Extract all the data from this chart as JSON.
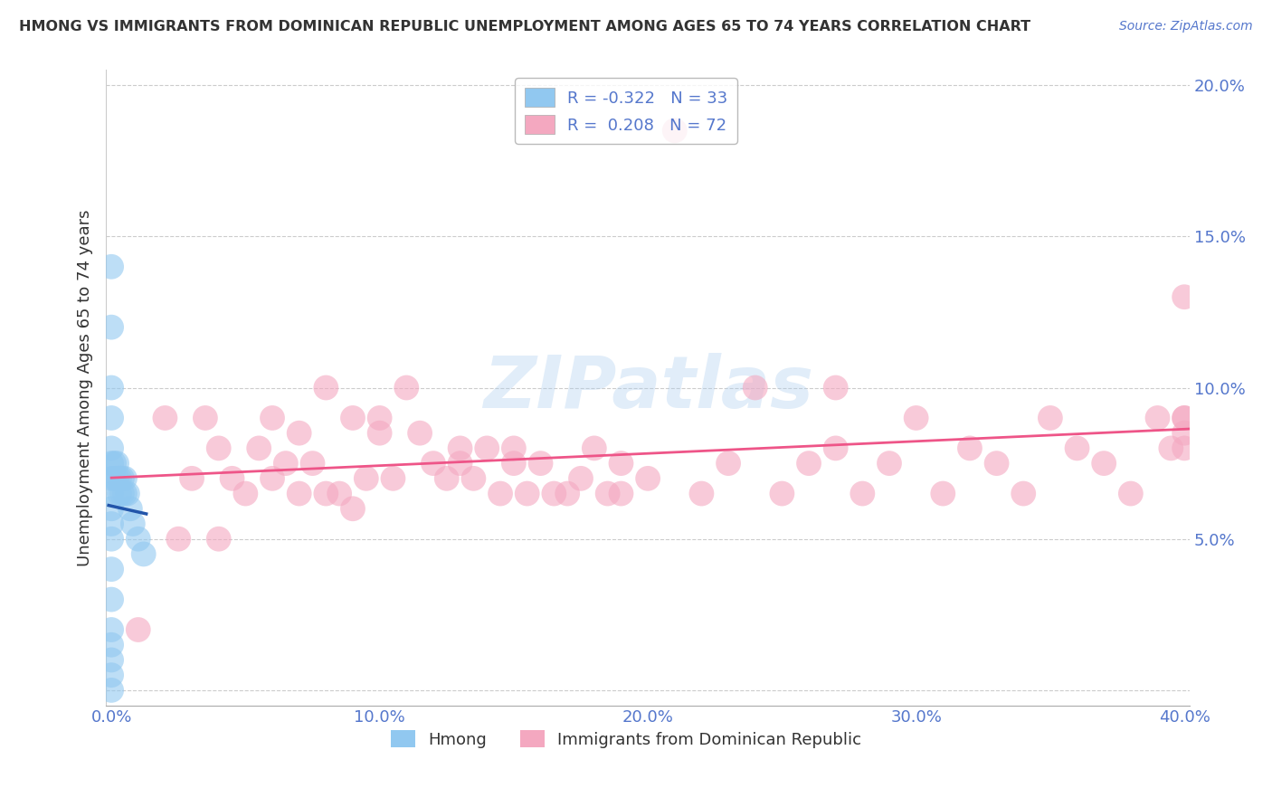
{
  "title": "HMONG VS IMMIGRANTS FROM DOMINICAN REPUBLIC UNEMPLOYMENT AMONG AGES 65 TO 74 YEARS CORRELATION CHART",
  "source": "Source: ZipAtlas.com",
  "ylabel": "Unemployment Among Ages 65 to 74 years",
  "xlabel": "",
  "xlim": [
    -0.002,
    0.402
  ],
  "ylim": [
    -0.005,
    0.205
  ],
  "xticks": [
    0.0,
    0.1,
    0.2,
    0.3,
    0.4
  ],
  "xticklabels": [
    "0.0%",
    "10.0%",
    "20.0%",
    "30.0%",
    "40.0%"
  ],
  "yticks": [
    0.0,
    0.05,
    0.1,
    0.15,
    0.2
  ],
  "yticklabels": [
    "",
    "5.0%",
    "10.0%",
    "15.0%",
    "20.0%"
  ],
  "hmong_R": -0.322,
  "hmong_N": 33,
  "dr_R": 0.208,
  "dr_N": 72,
  "hmong_color": "#91C8F0",
  "dr_color": "#F4A8C0",
  "hmong_line_color": "#2255AA",
  "dr_line_color": "#EE5588",
  "background_color": "#FFFFFF",
  "watermark": "ZIPatlas",
  "hmong_x": [
    0.0,
    0.0,
    0.0,
    0.0,
    0.0,
    0.0,
    0.0,
    0.0,
    0.0,
    0.0,
    0.0,
    0.0,
    0.0,
    0.0,
    0.0,
    0.0,
    0.0,
    0.0,
    0.001,
    0.001,
    0.002,
    0.002,
    0.003,
    0.003,
    0.004,
    0.004,
    0.005,
    0.005,
    0.006,
    0.007,
    0.008,
    0.01,
    0.012
  ],
  "hmong_y": [
    0.0,
    0.005,
    0.01,
    0.015,
    0.02,
    0.03,
    0.04,
    0.05,
    0.055,
    0.06,
    0.065,
    0.07,
    0.075,
    0.08,
    0.09,
    0.1,
    0.12,
    0.14,
    0.07,
    0.075,
    0.07,
    0.075,
    0.07,
    0.065,
    0.065,
    0.07,
    0.065,
    0.07,
    0.065,
    0.06,
    0.055,
    0.05,
    0.045
  ],
  "dr_x": [
    0.01,
    0.02,
    0.025,
    0.03,
    0.035,
    0.04,
    0.04,
    0.045,
    0.05,
    0.055,
    0.06,
    0.06,
    0.065,
    0.07,
    0.07,
    0.075,
    0.08,
    0.08,
    0.085,
    0.09,
    0.09,
    0.095,
    0.1,
    0.1,
    0.105,
    0.11,
    0.115,
    0.12,
    0.125,
    0.13,
    0.13,
    0.135,
    0.14,
    0.145,
    0.15,
    0.15,
    0.155,
    0.16,
    0.165,
    0.17,
    0.175,
    0.18,
    0.185,
    0.19,
    0.19,
    0.2,
    0.21,
    0.22,
    0.23,
    0.24,
    0.25,
    0.26,
    0.27,
    0.27,
    0.28,
    0.29,
    0.3,
    0.31,
    0.32,
    0.33,
    0.34,
    0.35,
    0.36,
    0.37,
    0.38,
    0.39,
    0.395,
    0.4,
    0.4,
    0.4,
    0.4,
    0.4
  ],
  "dr_y": [
    0.02,
    0.09,
    0.05,
    0.07,
    0.09,
    0.05,
    0.08,
    0.07,
    0.065,
    0.08,
    0.07,
    0.09,
    0.075,
    0.065,
    0.085,
    0.075,
    0.065,
    0.1,
    0.065,
    0.06,
    0.09,
    0.07,
    0.085,
    0.09,
    0.07,
    0.1,
    0.085,
    0.075,
    0.07,
    0.075,
    0.08,
    0.07,
    0.08,
    0.065,
    0.075,
    0.08,
    0.065,
    0.075,
    0.065,
    0.065,
    0.07,
    0.08,
    0.065,
    0.065,
    0.075,
    0.07,
    0.185,
    0.065,
    0.075,
    0.1,
    0.065,
    0.075,
    0.08,
    0.1,
    0.065,
    0.075,
    0.09,
    0.065,
    0.08,
    0.075,
    0.065,
    0.09,
    0.08,
    0.075,
    0.065,
    0.09,
    0.08,
    0.09,
    0.13,
    0.08,
    0.09,
    0.085
  ]
}
